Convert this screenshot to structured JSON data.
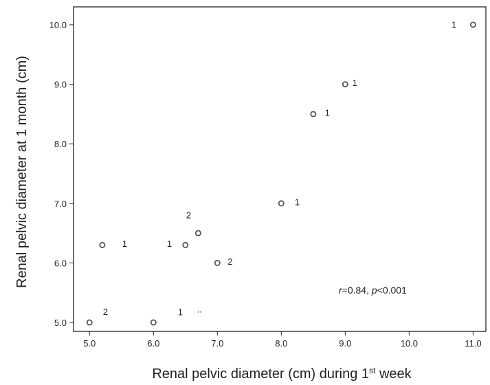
{
  "chart_data": {
    "type": "scatter",
    "xlabel": "Renal pelvic diameter (cm) during 1",
    "xlabel_sup": "st",
    "xlabel_suffix": " week",
    "ylabel": "Renal pelvic diameter at 1 month (cm)",
    "xlim": [
      4.75,
      11.2
    ],
    "ylim": [
      4.85,
      10.3
    ],
    "x_ticks": [
      "5.0",
      "6.0",
      "7.0",
      "8.0",
      "9.0",
      "10.0",
      "11.0"
    ],
    "y_ticks": [
      "5.0",
      "6.0",
      "7.0",
      "8.0",
      "9.0",
      "10.0"
    ],
    "grid": false,
    "legend": "none",
    "marker_color": "#555555",
    "points": [
      {
        "x": 5.0,
        "y": 5.0
      },
      {
        "x": 5.2,
        "y": 6.3
      },
      {
        "x": 6.0,
        "y": 5.0
      },
      {
        "x": 6.5,
        "y": 6.3
      },
      {
        "x": 6.7,
        "y": 6.5
      },
      {
        "x": 7.0,
        "y": 6.0
      },
      {
        "x": 8.0,
        "y": 7.0
      },
      {
        "x": 8.5,
        "y": 8.5
      },
      {
        "x": 9.0,
        "y": 9.0
      },
      {
        "x": 11.0,
        "y": 10.0
      }
    ],
    "point_labels": [
      {
        "text": "2",
        "x": 5.25,
        "y": 5.13
      },
      {
        "text": "1",
        "x": 5.55,
        "y": 6.27
      },
      {
        "text": "1",
        "x": 6.42,
        "y": 5.12
      },
      {
        "text": "..",
        "x": 6.72,
        "y": 5.17
      },
      {
        "text": "1",
        "x": 6.25,
        "y": 6.27
      },
      {
        "text": "2",
        "x": 6.55,
        "y": 6.75
      },
      {
        "text": "2",
        "x": 7.2,
        "y": 5.97
      },
      {
        "text": "1",
        "x": 8.25,
        "y": 6.97
      },
      {
        "text": "1",
        "x": 8.72,
        "y": 8.47
      },
      {
        "text": "1",
        "x": 9.15,
        "y": 8.97
      },
      {
        "text": "1",
        "x": 10.7,
        "y": 9.95
      }
    ],
    "annotation": {
      "r_label": "r",
      "r_value": "=0.84, ",
      "p_label": "p",
      "p_value": "<0.001"
    }
  }
}
